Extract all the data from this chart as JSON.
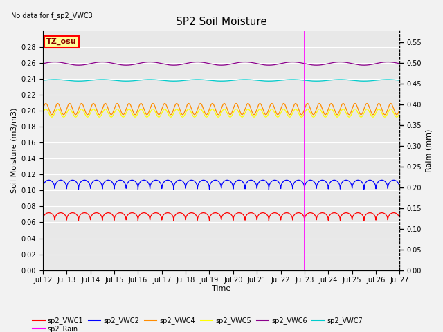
{
  "title": "SP2 Soil Moisture",
  "no_data_text": "No data for f_sp2_VWC3",
  "xlabel": "Time",
  "ylabel_left": "Soil Moisture (m3/m3)",
  "ylabel_right": "Raim (mm)",
  "xlim_days": [
    0,
    15
  ],
  "ylim_left": [
    0.0,
    0.3
  ],
  "ylim_right": [
    0.0,
    0.5775
  ],
  "yticks_left": [
    0.0,
    0.02,
    0.04,
    0.06,
    0.08,
    0.1,
    0.12,
    0.14,
    0.16,
    0.18,
    0.2,
    0.22,
    0.24,
    0.26,
    0.28
  ],
  "yticks_right": [
    0.0,
    0.05,
    0.1,
    0.15,
    0.2,
    0.25,
    0.3,
    0.35,
    0.4,
    0.45,
    0.5,
    0.55
  ],
  "xtick_labels": [
    "Jul 12",
    "Jul 13",
    "Jul 14",
    "Jul 15",
    "Jul 16",
    "Jul 17",
    "Jul 18",
    "Jul 19",
    "Jul 20",
    "Jul 21",
    "Jul 22",
    "Jul 23",
    "Jul 24",
    "Jul 25",
    "Jul 26",
    "Jul 27"
  ],
  "xtick_positions": [
    0,
    1,
    2,
    3,
    4,
    5,
    6,
    7,
    8,
    9,
    10,
    11,
    12,
    13,
    14,
    15
  ],
  "vline_x": 11,
  "vline_color": "#FF00FF",
  "background_color": "#E8E8E8",
  "series": {
    "sp2_VWC1": {
      "color": "#FF0000",
      "base": 0.061,
      "amp": 0.011,
      "period": 0.5,
      "sharpness": 3
    },
    "sp2_VWC2": {
      "color": "#0000FF",
      "base": 0.1,
      "amp": 0.013,
      "period": 0.5,
      "sharpness": 3
    },
    "sp2_VWC4": {
      "color": "#FF8C00",
      "base": 0.202,
      "amp": 0.007,
      "period": 0.5,
      "sharpness": 1
    },
    "sp2_VWC5": {
      "color": "#FFFF00",
      "base": 0.197,
      "amp": 0.005,
      "period": 0.5,
      "sharpness": 1
    },
    "sp2_VWC6": {
      "color": "#8B008B",
      "base": 0.259,
      "amp": 0.002,
      "period": 2.0,
      "sharpness": 1
    },
    "sp2_VWC7": {
      "color": "#00CCCC",
      "base": 0.238,
      "amp": 0.001,
      "period": 2.0,
      "sharpness": 1
    }
  },
  "rain_color": "#FF00FF",
  "tz_box_text": "TZ_osu",
  "tz_box_facecolor": "#FFFF99",
  "tz_box_edgecolor": "#FF0000",
  "legend_items": [
    {
      "label": "sp2_VWC1",
      "color": "#FF0000"
    },
    {
      "label": "sp2_VWC2",
      "color": "#0000FF"
    },
    {
      "label": "sp2_VWC4",
      "color": "#FF8C00"
    },
    {
      "label": "sp2_VWC5",
      "color": "#FFFF00"
    },
    {
      "label": "sp2_VWC6",
      "color": "#8B008B"
    },
    {
      "label": "sp2_VWC7",
      "color": "#00CCCC"
    },
    {
      "label": "sp2_Rain",
      "color": "#FF00FF"
    }
  ]
}
